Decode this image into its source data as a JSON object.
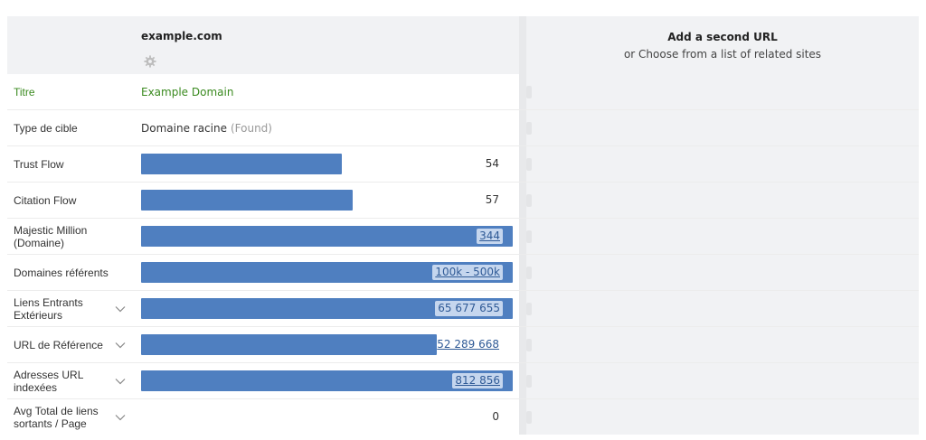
{
  "header": {
    "site": "example.com",
    "gear_icon": "gear-icon",
    "second_title": "Add a second URL",
    "second_sub": "or Choose from a list of related sites"
  },
  "rows": [
    {
      "label": "Titre",
      "value": "Example Domain"
    },
    {
      "label": "Type de cible",
      "value": "Domaine racine",
      "note": "(Found)"
    },
    {
      "label": "Trust Flow",
      "number": "54",
      "fill": 0.54
    },
    {
      "label": "Citation Flow",
      "number": "57",
      "fill": 0.57
    },
    {
      "label": "Majestic Million (Domaine)",
      "number": "344",
      "fill": 1.0
    },
    {
      "label": "Domaines référents",
      "number": "100k - 500k",
      "fill": 1.0
    },
    {
      "label": "Liens Entrants Extérieurs",
      "number": "65 677 655",
      "fill": 1.0
    },
    {
      "label": "URL de Référence",
      "number": "52 289 668",
      "fill": 0.796
    },
    {
      "label": "Adresses URL indexées",
      "number": "812 856",
      "fill": 1.0
    },
    {
      "label": "Avg Total de liens sortants / Page",
      "number": "0"
    }
  ],
  "colors": {
    "bar": "#4f7fc0",
    "title_green": "#3a8a1f",
    "panel": "#f1f2f4"
  }
}
